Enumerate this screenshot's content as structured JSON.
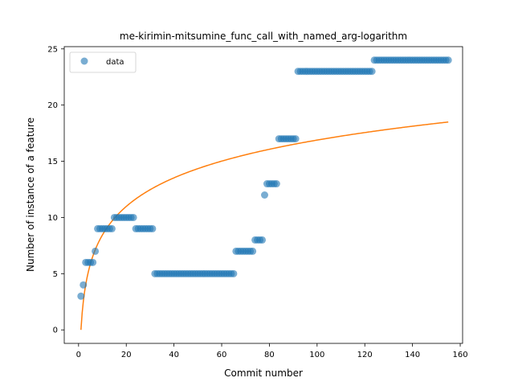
{
  "chart_data": {
    "type": "scatter",
    "title": "me-kirimin-mitsumine_func_call_with_named_arg-logarithm",
    "xlabel": "Commit number",
    "ylabel": "Number of instance of a feature",
    "xlim": [
      -6,
      161
    ],
    "ylim": [
      -1.2,
      25.2
    ],
    "xticks": [
      0,
      20,
      40,
      60,
      80,
      100,
      120,
      140,
      160
    ],
    "yticks": [
      0,
      5,
      10,
      15,
      20,
      25
    ],
    "legend_position": "upper-left",
    "colors": {
      "data": "#1f77b4",
      "fit": "#ff7f0e"
    },
    "series": [
      {
        "name": "data",
        "kind": "points",
        "segments": [
          {
            "x_from": 1,
            "x_to": 1,
            "y": 3
          },
          {
            "x_from": 2,
            "x_to": 2,
            "y": 4
          },
          {
            "x_from": 3,
            "x_to": 6,
            "y": 6
          },
          {
            "x_from": 7,
            "x_to": 7,
            "y": 7
          },
          {
            "x_from": 8,
            "x_to": 14,
            "y": 9
          },
          {
            "x_from": 15,
            "x_to": 23,
            "y": 10
          },
          {
            "x_from": 24,
            "x_to": 31,
            "y": 9
          },
          {
            "x_from": 32,
            "x_to": 65,
            "y": 5
          },
          {
            "x_from": 66,
            "x_to": 73,
            "y": 7
          },
          {
            "x_from": 74,
            "x_to": 77,
            "y": 8
          },
          {
            "x_from": 78,
            "x_to": 78,
            "y": 12
          },
          {
            "x_from": 79,
            "x_to": 83,
            "y": 13
          },
          {
            "x_from": 84,
            "x_to": 91,
            "y": 17
          },
          {
            "x_from": 92,
            "x_to": 123,
            "y": 23
          },
          {
            "x_from": 124,
            "x_to": 155,
            "y": 24
          }
        ]
      },
      {
        "name": "",
        "kind": "logarithmic-fit",
        "x_range": [
          1,
          155
        ],
        "a": 3.667,
        "b": 0.0
      }
    ]
  }
}
